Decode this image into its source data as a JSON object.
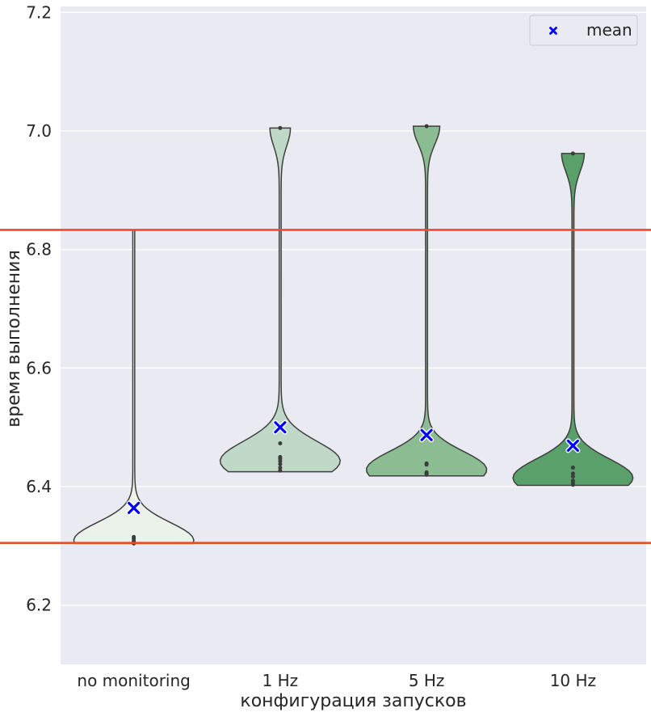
{
  "chart_data": {
    "type": "violin",
    "title": "",
    "xlabel": "конфигурация запусков",
    "ylabel": "время выполнения",
    "ylim": [
      6.1,
      7.21
    ],
    "yticks": [
      "6.2",
      "6.4",
      "6.6",
      "6.8",
      "7.0",
      "7.2"
    ],
    "ytick_values": [
      6.2,
      6.4,
      6.6,
      6.8,
      7.0,
      7.2
    ],
    "grid": true,
    "background_color": "#eaeaf2",
    "legend": {
      "position": "top-right",
      "label": "mean",
      "marker_color": "#0000ff"
    },
    "reference_lines": {
      "color": "#f04a28",
      "values": [
        6.833,
        6.305
      ]
    },
    "categories": [
      "no monitoring",
      "1 Hz",
      "5 Hz",
      "10 Hz"
    ],
    "series": [
      {
        "category": "no monitoring",
        "color": "#ebf2ea",
        "min": 6.304,
        "max": 6.833,
        "mean": 6.364,
        "points": [
          6.304,
          6.306,
          6.308,
          6.312,
          6.315
        ]
      },
      {
        "category": "1 Hz",
        "color": "#c0d8c7",
        "min": 6.425,
        "max": 7.005,
        "mean": 6.5,
        "points": [
          6.427,
          6.432,
          6.438,
          6.443,
          6.447,
          6.45,
          6.473,
          7.005
        ]
      },
      {
        "category": "5 Hz",
        "color": "#8cbc92",
        "min": 6.418,
        "max": 7.008,
        "mean": 6.487,
        "points": [
          6.42,
          6.422,
          6.424,
          6.437,
          6.439,
          7.008
        ]
      },
      {
        "category": "10 Hz",
        "color": "#5aa06a",
        "min": 6.402,
        "max": 6.962,
        "mean": 6.469,
        "points": [
          6.403,
          6.406,
          6.41,
          6.417,
          6.422,
          6.432,
          6.962
        ]
      }
    ]
  }
}
